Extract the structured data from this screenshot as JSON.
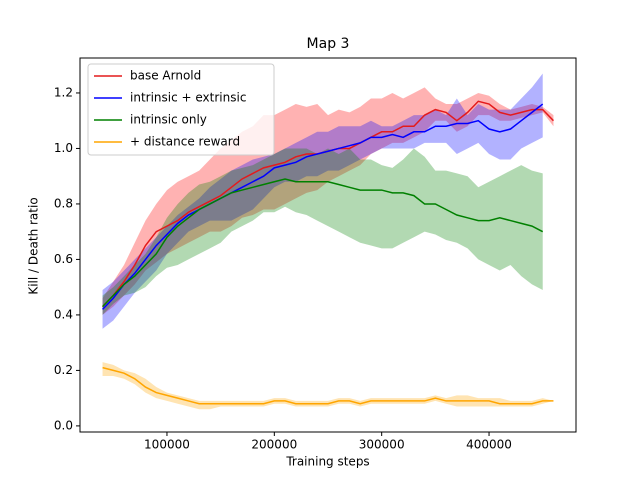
{
  "chart_data": {
    "type": "line",
    "title": "Map 3",
    "x_label": "Training steps",
    "y_label": "Kill / Death ratio",
    "x": [
      40000,
      50000,
      60000,
      70000,
      80000,
      90000,
      100000,
      110000,
      120000,
      130000,
      140000,
      150000,
      160000,
      170000,
      180000,
      190000,
      200000,
      210000,
      220000,
      230000,
      240000,
      250000,
      260000,
      270000,
      280000,
      290000,
      300000,
      310000,
      320000,
      330000,
      340000,
      350000,
      360000,
      370000,
      380000,
      390000,
      400000,
      410000,
      420000,
      430000,
      440000,
      450000,
      460000
    ],
    "xlim": [
      19000,
      481000
    ],
    "xticks": [
      100000,
      200000,
      300000,
      400000
    ],
    "ylim": [
      -0.022,
      1.326
    ],
    "yticks": [
      {
        "value": 0,
        "label": "0.0"
      },
      0.2,
      0.4,
      0.6,
      0.8,
      {
        "value": 1,
        "label": "1.0"
      },
      1.2
    ],
    "legend": "upper left",
    "series": [
      {
        "name": "base Arnold",
        "color": "#e41a1c",
        "band_color": "#ff0000",
        "values": [
          0.43,
          0.47,
          0.52,
          0.58,
          0.65,
          0.7,
          0.72,
          0.74,
          0.77,
          0.79,
          0.81,
          0.83,
          0.86,
          0.89,
          0.91,
          0.93,
          0.94,
          0.95,
          0.97,
          0.98,
          0.98,
          0.99,
          1.0,
          1.0,
          1.02,
          1.04,
          1.06,
          1.06,
          1.08,
          1.08,
          1.12,
          1.14,
          1.13,
          1.1,
          1.13,
          1.17,
          1.16,
          1.13,
          1.12,
          1.13,
          1.14,
          1.14,
          1.1
        ],
        "upper": [
          0.46,
          0.52,
          0.58,
          0.66,
          0.74,
          0.8,
          0.85,
          0.88,
          0.9,
          0.92,
          0.96,
          1.0,
          1.03,
          1.06,
          1.08,
          1.12,
          1.12,
          1.14,
          1.16,
          1.15,
          1.16,
          1.12,
          1.14,
          1.13,
          1.15,
          1.18,
          1.18,
          1.2,
          1.18,
          1.2,
          1.22,
          1.18,
          1.16,
          1.16,
          1.18,
          1.2,
          1.19,
          1.16,
          1.14,
          1.15,
          1.16,
          1.15,
          1.12
        ],
        "lower": [
          0.4,
          0.43,
          0.47,
          0.51,
          0.56,
          0.59,
          0.62,
          0.64,
          0.66,
          0.68,
          0.7,
          0.7,
          0.72,
          0.75,
          0.76,
          0.78,
          0.78,
          0.8,
          0.82,
          0.84,
          0.85,
          0.88,
          0.9,
          0.92,
          0.94,
          0.98,
          1.0,
          1.02,
          1.02,
          1.04,
          1.06,
          1.1,
          1.1,
          1.06,
          1.08,
          1.12,
          1.12,
          1.1,
          1.1,
          1.11,
          1.12,
          1.13,
          1.08
        ]
      },
      {
        "name": "intrinsic + extrinsic",
        "color": "#0000ff",
        "band_color": "#0000ff",
        "values": [
          0.42,
          0.46,
          0.51,
          0.55,
          0.6,
          0.65,
          0.69,
          0.73,
          0.76,
          0.78,
          0.8,
          0.82,
          0.84,
          0.86,
          0.88,
          0.9,
          0.93,
          0.94,
          0.95,
          0.97,
          0.98,
          0.99,
          1.0,
          1.01,
          1.02,
          1.04,
          1.04,
          1.05,
          1.04,
          1.06,
          1.06,
          1.08,
          1.08,
          1.09,
          1.09,
          1.1,
          1.07,
          1.06,
          1.07,
          1.1,
          1.13,
          1.16,
          null
        ],
        "upper": [
          0.49,
          0.52,
          0.56,
          0.6,
          0.64,
          0.68,
          0.72,
          0.76,
          0.79,
          0.82,
          0.86,
          0.89,
          0.92,
          0.94,
          0.96,
          0.97,
          0.98,
          1.0,
          1.02,
          1.04,
          1.06,
          1.06,
          1.08,
          1.08,
          1.08,
          1.1,
          1.08,
          1.08,
          1.1,
          1.12,
          1.12,
          1.14,
          1.12,
          1.18,
          1.12,
          1.16,
          1.14,
          1.14,
          1.14,
          1.18,
          1.22,
          1.27,
          null
        ],
        "lower": [
          0.35,
          0.38,
          0.43,
          0.48,
          0.52,
          0.56,
          0.62,
          0.66,
          0.7,
          0.72,
          0.74,
          0.74,
          0.74,
          0.76,
          0.78,
          0.82,
          0.86,
          0.88,
          0.88,
          0.9,
          0.9,
          0.92,
          0.92,
          0.94,
          0.96,
          0.98,
          1.0,
          1.0,
          1.0,
          1.0,
          1.02,
          1.02,
          1.02,
          0.98,
          1.0,
          1.02,
          0.98,
          0.96,
          0.96,
          1.0,
          1.02,
          1.04,
          null
        ]
      },
      {
        "name": "intrinsic only",
        "color": "#008000",
        "band_color": "#008000",
        "values": [
          0.43,
          0.47,
          0.51,
          0.54,
          0.58,
          0.62,
          0.68,
          0.72,
          0.75,
          0.78,
          0.8,
          0.82,
          0.84,
          0.85,
          0.86,
          0.87,
          0.88,
          0.89,
          0.88,
          0.88,
          0.88,
          0.88,
          0.87,
          0.86,
          0.85,
          0.85,
          0.85,
          0.84,
          0.84,
          0.83,
          0.8,
          0.8,
          0.78,
          0.76,
          0.75,
          0.74,
          0.74,
          0.75,
          0.74,
          0.73,
          0.72,
          0.7,
          null
        ],
        "upper": [
          0.47,
          0.5,
          0.54,
          0.58,
          0.62,
          0.68,
          0.75,
          0.8,
          0.84,
          0.87,
          0.88,
          0.9,
          0.92,
          0.93,
          0.94,
          0.96,
          0.98,
          1.0,
          1.0,
          1.0,
          0.98,
          1.0,
          0.98,
          1.0,
          0.96,
          0.96,
          0.94,
          0.93,
          0.96,
          1.0,
          0.97,
          0.92,
          0.92,
          0.91,
          0.9,
          0.86,
          0.88,
          0.9,
          0.92,
          0.94,
          0.92,
          0.91,
          null
        ],
        "lower": [
          0.4,
          0.44,
          0.47,
          0.48,
          0.5,
          0.54,
          0.57,
          0.58,
          0.6,
          0.62,
          0.64,
          0.66,
          0.7,
          0.72,
          0.74,
          0.77,
          0.77,
          0.79,
          0.77,
          0.76,
          0.74,
          0.72,
          0.7,
          0.68,
          0.66,
          0.65,
          0.64,
          0.64,
          0.66,
          0.68,
          0.7,
          0.69,
          0.67,
          0.66,
          0.64,
          0.6,
          0.58,
          0.56,
          0.58,
          0.54,
          0.51,
          0.49,
          null
        ]
      },
      {
        "name": "+ distance reward",
        "color": "#ffa500",
        "band_color": "#ffa500",
        "values": [
          0.21,
          0.2,
          0.19,
          0.17,
          0.14,
          0.12,
          0.11,
          0.1,
          0.09,
          0.08,
          0.08,
          0.08,
          0.08,
          0.08,
          0.08,
          0.08,
          0.09,
          0.09,
          0.08,
          0.08,
          0.08,
          0.08,
          0.09,
          0.09,
          0.08,
          0.09,
          0.09,
          0.09,
          0.09,
          0.09,
          0.09,
          0.1,
          0.09,
          0.09,
          0.09,
          0.09,
          0.09,
          0.08,
          0.08,
          0.08,
          0.08,
          0.09,
          0.09
        ],
        "upper": [
          0.23,
          0.22,
          0.2,
          0.19,
          0.17,
          0.14,
          0.12,
          0.11,
          0.1,
          0.09,
          0.09,
          0.09,
          0.09,
          0.09,
          0.09,
          0.09,
          0.1,
          0.1,
          0.09,
          0.09,
          0.09,
          0.09,
          0.1,
          0.1,
          0.09,
          0.1,
          0.1,
          0.1,
          0.1,
          0.1,
          0.1,
          0.11,
          0.1,
          0.11,
          0.11,
          0.1,
          0.1,
          0.1,
          0.09,
          0.09,
          0.09,
          0.1,
          0.09
        ],
        "lower": [
          0.18,
          0.18,
          0.17,
          0.15,
          0.12,
          0.1,
          0.09,
          0.08,
          0.07,
          0.06,
          0.06,
          0.07,
          0.07,
          0.07,
          0.07,
          0.07,
          0.08,
          0.08,
          0.07,
          0.07,
          0.07,
          0.07,
          0.08,
          0.08,
          0.07,
          0.08,
          0.08,
          0.08,
          0.08,
          0.08,
          0.08,
          0.09,
          0.08,
          0.07,
          0.07,
          0.07,
          0.07,
          0.07,
          0.07,
          0.07,
          0.07,
          0.08,
          0.09
        ]
      }
    ]
  }
}
